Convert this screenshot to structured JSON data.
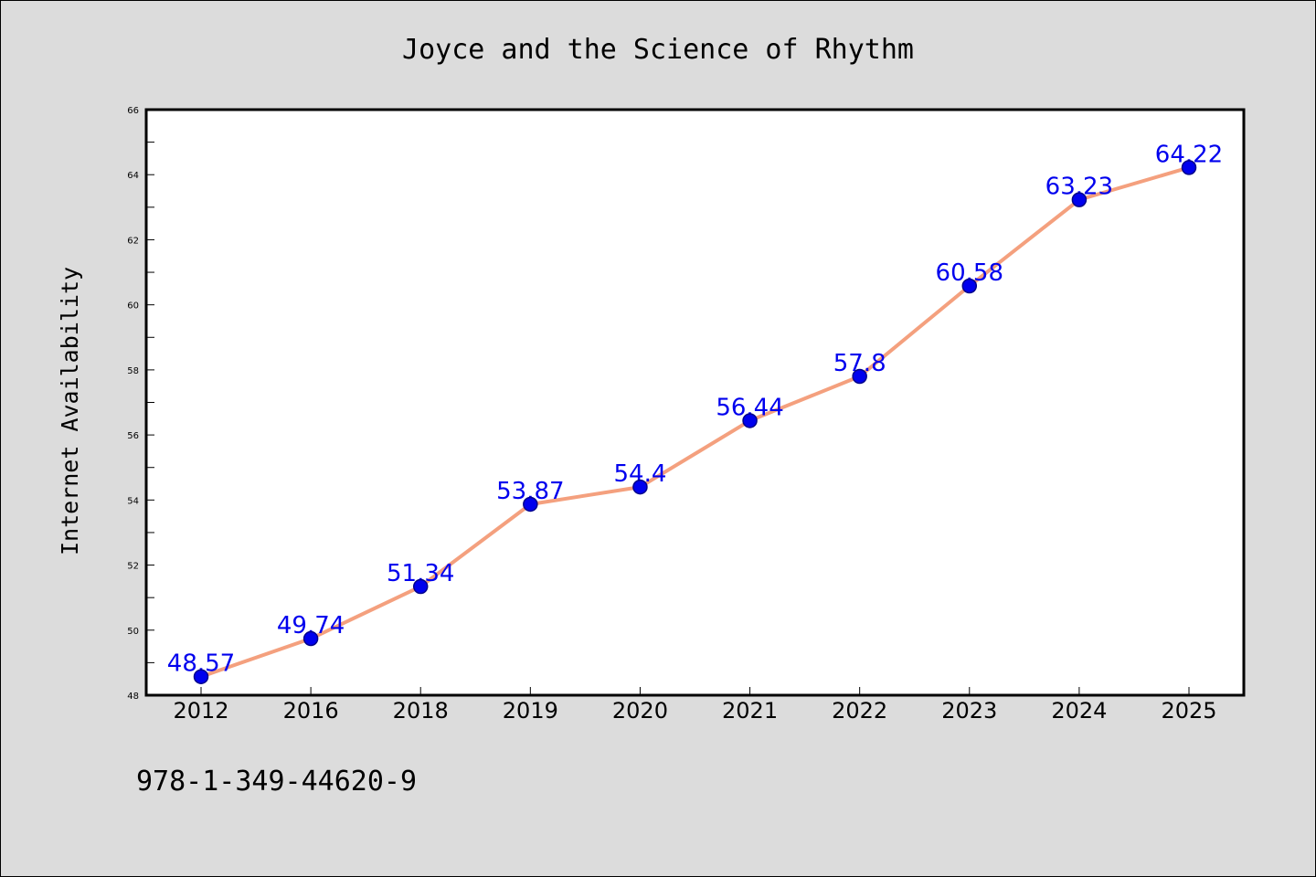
{
  "colors": {
    "figure_background": "#dcdcdc",
    "plot_background": "#ffffff",
    "line": "#f4a07e",
    "marker_fill": "#0000ee",
    "marker_edge": "#00008b",
    "point_label": "#0000ee",
    "axes": "#000000"
  },
  "isbn": "978-1-349-44620-9",
  "chart_data": {
    "type": "line",
    "title": "Joyce and the Science of Rhythm",
    "xlabel": "",
    "ylabel": "Internet Availability",
    "categories": [
      "2012",
      "2016",
      "2018",
      "2019",
      "2020",
      "2021",
      "2022",
      "2023",
      "2024",
      "2025"
    ],
    "values": [
      48.57,
      49.74,
      51.34,
      53.87,
      54.4,
      56.44,
      57.8,
      60.58,
      63.23,
      64.22
    ],
    "point_labels": [
      "48.57",
      "49.74",
      "51.34",
      "53.87",
      "54.4",
      "56.44",
      "57.8",
      "60.58",
      "63.23",
      "64.22"
    ],
    "ylim": [
      48,
      66
    ],
    "yticks": [
      48,
      50,
      52,
      54,
      56,
      58,
      60,
      62,
      64,
      66
    ],
    "yticks_minor": [
      49,
      51,
      53,
      55,
      57,
      59,
      61,
      63,
      65
    ],
    "grid": false,
    "legend": "none",
    "marker": "circle"
  }
}
